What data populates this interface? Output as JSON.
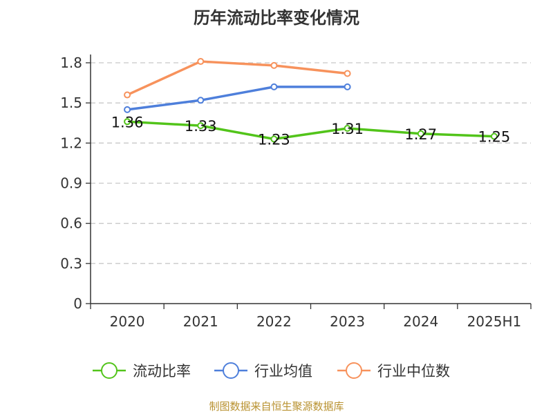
{
  "title": "历年流动比率变化情况",
  "source": "制图数据来自恒生聚源数据库",
  "chart_data": {
    "type": "line",
    "title": "历年流动比率变化情况",
    "categories": [
      "2020",
      "2021",
      "2022",
      "2023",
      "2024",
      "2025H1"
    ],
    "y_ticks": [
      "0",
      "0.3",
      "0.6",
      "0.9",
      "1.2",
      "1.5",
      "1.8"
    ],
    "ylim": [
      0,
      1.8
    ],
    "grid": true,
    "legend_position": "bottom",
    "series": [
      {
        "name": "流动比率",
        "color": "#52c41a",
        "values": [
          1.36,
          1.33,
          1.23,
          1.31,
          1.27,
          1.25
        ],
        "labels": [
          "1.36",
          "1.33",
          "1.23",
          "1.31",
          "1.27",
          "1.25"
        ]
      },
      {
        "name": "行业均值",
        "color": "#4e7fdb",
        "values": [
          1.45,
          1.52,
          1.62,
          1.62,
          null,
          null
        ]
      },
      {
        "name": "行业中位数",
        "color": "#f7925c",
        "values": [
          1.56,
          1.81,
          1.78,
          1.72,
          null,
          null
        ]
      }
    ]
  }
}
